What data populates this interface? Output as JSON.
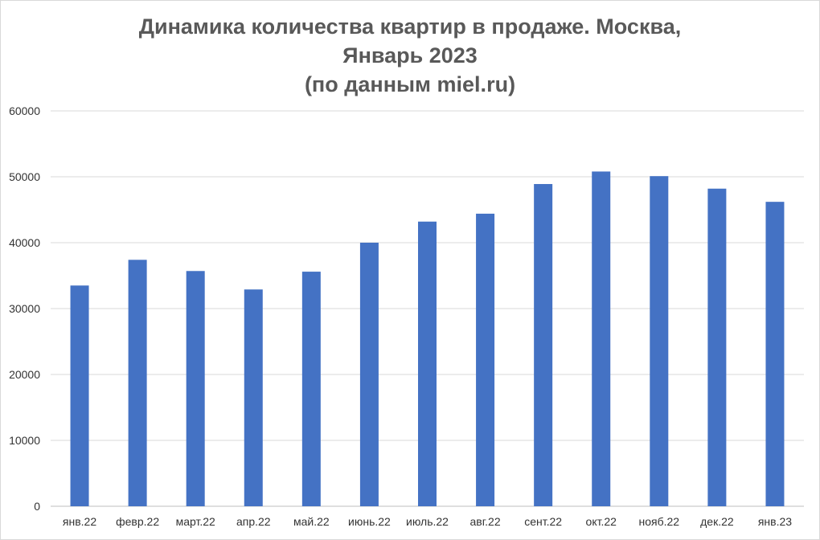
{
  "chart_data": {
    "type": "bar",
    "title_lines": [
      "Динамика количества квартир в продаже. Москва,",
      "Январь 2023",
      "(по данным miel.ru)"
    ],
    "categories": [
      "янв.22",
      "февр.22",
      "март.22",
      "апр.22",
      "май.22",
      "июнь.22",
      "июль.22",
      "авг.22",
      "сент.22",
      "окт.22",
      "нояб.22",
      "дек.22",
      "янв.23"
    ],
    "series": [
      {
        "values": [
          33500,
          37400,
          35700,
          32900,
          35600,
          40000,
          43200,
          44400,
          48900,
          50800,
          50100,
          48200,
          46200
        ]
      }
    ],
    "ylim": [
      0,
      60000
    ],
    "yticks": [
      0,
      10000,
      20000,
      30000,
      40000,
      50000,
      60000
    ],
    "xlabel": "",
    "ylabel": "",
    "grid": true,
    "legend": "none",
    "colors": {
      "bar": "#4472C4",
      "grid": "#d9d9d9",
      "title": "#595959"
    }
  }
}
